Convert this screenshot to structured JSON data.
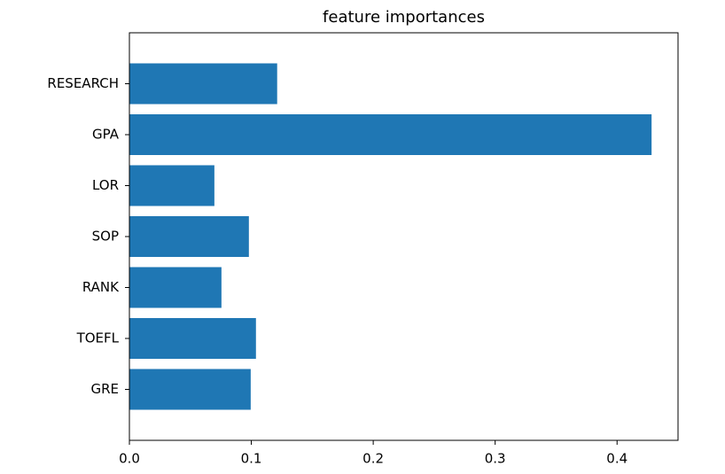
{
  "chart_data": {
    "type": "barh",
    "title": "feature importances",
    "categories": [
      "GRE",
      "TOEFL",
      "RANK",
      "SOP",
      "LOR",
      "GPA",
      "RESEARCH"
    ],
    "values": [
      0.0995,
      0.1038,
      0.0755,
      0.098,
      0.0697,
      0.4283,
      0.1212
    ],
    "color": "#1f77b4",
    "xlim": [
      0,
      0.45
    ],
    "xticks": [
      {
        "value": 0,
        "label": "0.0"
      },
      0.1,
      0.2,
      0.3,
      0.4
    ],
    "grid": false
  }
}
